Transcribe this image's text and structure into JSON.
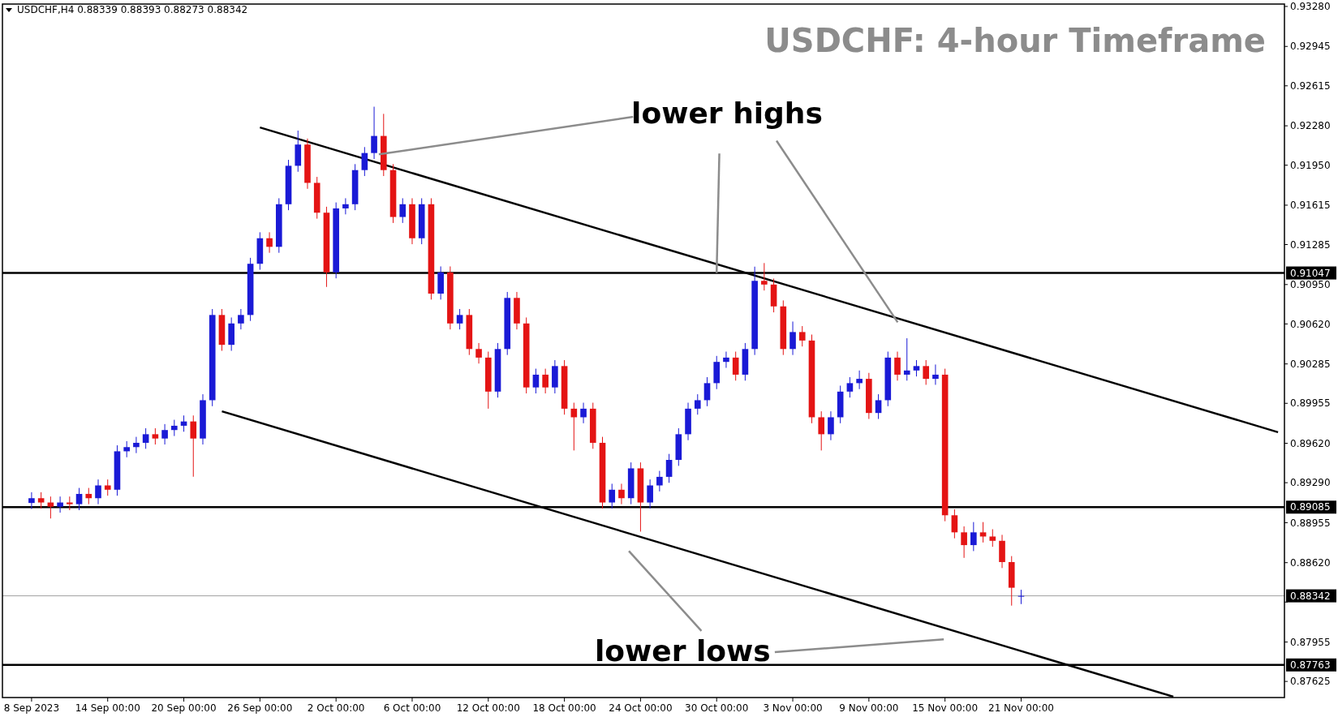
{
  "chart_data": {
    "type": "candlestick",
    "title": "USDCHF: 4-hour Timeframe",
    "annotations": [
      "USDCHF,H4  0.88339 0.88393 0.88273 0.88342",
      {
        "text": "lower highs",
        "x": "30 Oct 00:00",
        "y": 0.91047
      },
      {
        "text": "lower lows",
        "y": 0.88717
      }
    ],
    "categories": [
      "8 Sep 2023",
      null,
      null,
      null,
      null,
      null,
      null,
      null,
      "14 Sep 00:00",
      null,
      null,
      null,
      null,
      null,
      null,
      null,
      "20 Sep 00:00",
      null,
      null,
      null,
      null,
      null,
      null,
      null,
      "26 Sep 00:00",
      null,
      null,
      null,
      null,
      null,
      null,
      null,
      "2 Oct 00:00",
      null,
      null,
      null,
      null,
      null,
      null,
      null,
      "6 Oct 00:00",
      null,
      null,
      null,
      null,
      null,
      null,
      null,
      "12 Oct 00:00",
      null,
      null,
      null,
      null,
      null,
      null,
      null,
      "18 Oct 00:00",
      null,
      null,
      null,
      null,
      null,
      null,
      null,
      "24 Oct 00:00",
      null,
      null,
      null,
      null,
      null,
      null,
      null,
      "30 Oct 00:00",
      null,
      null,
      null,
      null,
      null,
      null,
      null,
      "3 Nov 00:00",
      null,
      null,
      null,
      null,
      null,
      null,
      null,
      "9 Nov 00:00",
      null,
      null,
      null,
      null,
      null,
      null,
      null,
      "15 Nov 00:00",
      null,
      null,
      null,
      null,
      null,
      null,
      null,
      "21 Nov 00:00",
      null,
      null,
      null,
      null,
      null,
      null,
      null,
      null,
      null,
      null,
      null,
      null,
      null,
      null,
      null,
      null,
      null,
      null,
      null,
      null,
      null,
      null,
      null,
      null,
      null,
      null,
      null
    ],
    "colors": [
      "#1a1ad6",
      "#e41414",
      "#e41414",
      "#1a1ad6",
      "#e41414",
      "#1a1ad6",
      "#e41414",
      "#1a1ad6",
      "#e41414",
      "#1a1ad6",
      "#1a1ad6",
      "#1a1ad6",
      "#1a1ad6",
      "#e41414",
      "#1a1ad6",
      "#1a1ad6",
      "#1a1ad6",
      "#e41414",
      "#1a1ad6",
      "#1a1ad6",
      "#e41414",
      "#1a1ad6",
      "#1a1ad6",
      "#1a1ad6",
      "#1a1ad6",
      "#e41414",
      "#1a1ad6",
      "#1a1ad6",
      "#1a1ad6",
      "#e41414",
      "#e41414",
      "#e41414",
      "#1a1ad6",
      "#1a1ad6",
      "#1a1ad6",
      "#1a1ad6",
      "#1a1ad6",
      "#e41414",
      "#e41414",
      "#1a1ad6",
      "#e41414",
      "#1a1ad6",
      "#e41414",
      "#1a1ad6",
      "#e41414",
      "#1a1ad6",
      "#e41414",
      "#e41414",
      "#e41414",
      "#1a1ad6",
      "#1a1ad6",
      "#e41414",
      "#e41414",
      "#1a1ad6",
      "#e41414",
      "#1a1ad6",
      "#e41414",
      "#e41414",
      "#1a1ad6",
      "#e41414",
      "#e41414",
      "#1a1ad6",
      "#e41414",
      "#1a1ad6",
      "#e41414",
      "#1a1ad6",
      "#1a1ad6",
      "#1a1ad6",
      "#1a1ad6",
      "#1a1ad6",
      "#1a1ad6",
      "#1a1ad6",
      "#1a1ad6",
      "#1a1ad6",
      "#e41414",
      "#1a1ad6",
      "#1a1ad6",
      "#e41414",
      "#e41414",
      "#e41414",
      "#1a1ad6",
      "#e41414",
      "#e41414",
      "#e41414",
      "#1a1ad6",
      "#1a1ad6",
      "#1a1ad6",
      "#1a1ad6",
      "#e41414",
      "#1a1ad6",
      "#1a1ad6",
      "#e41414",
      "#1a1ad6",
      "#1a1ad6",
      "#e41414",
      "#1a1ad6",
      "#e41414",
      "#e41414",
      "#e41414",
      "#1a1ad6",
      "#e41414",
      "#e41414",
      "#e41414",
      "#e41414",
      "#1a1ad6",
      null,
      null,
      null,
      null,
      null,
      null,
      null,
      null,
      null,
      null,
      null,
      null,
      null,
      null,
      null,
      null,
      null,
      null,
      null,
      null,
      null,
      null,
      null,
      null,
      null,
      null,
      null
    ],
    "ohlc": [
      [
        0.8912,
        0.8921,
        0.8907,
        0.8916
      ],
      [
        0.8916,
        0.8921,
        0.89074,
        0.89124
      ],
      [
        0.89124,
        0.89174,
        0.8899,
        0.89089
      ],
      [
        0.89089,
        0.89174,
        0.89039,
        0.89124
      ],
      [
        0.89124,
        0.89174,
        0.8906,
        0.8911
      ],
      [
        0.8911,
        0.89246,
        0.8906,
        0.89196
      ],
      [
        0.89196,
        0.89246,
        0.8911,
        0.8916
      ],
      [
        0.8916,
        0.89317,
        0.8911,
        0.89267
      ],
      [
        0.89267,
        0.89317,
        0.89181,
        0.89231
      ],
      [
        0.89231,
        0.89603,
        0.89181,
        0.89553
      ],
      [
        0.89553,
        0.89638,
        0.89503,
        0.89588
      ],
      [
        0.89588,
        0.89674,
        0.89538,
        0.89624
      ],
      [
        0.89624,
        0.89746,
        0.89574,
        0.89696
      ],
      [
        0.89696,
        0.89746,
        0.8961,
        0.8966
      ],
      [
        0.8966,
        0.89781,
        0.8961,
        0.89731
      ],
      [
        0.89731,
        0.89817,
        0.89681,
        0.89767
      ],
      [
        0.89767,
        0.89853,
        0.89717,
        0.89803
      ],
      [
        0.89803,
        0.89853,
        0.8934,
        0.8966
      ],
      [
        0.8966,
        0.90031,
        0.8961,
        0.89981
      ],
      [
        0.89981,
        0.90745,
        0.89931,
        0.90695
      ],
      [
        0.90695,
        0.90745,
        0.90395,
        0.90445
      ],
      [
        0.90445,
        0.90674,
        0.90395,
        0.90624
      ],
      [
        0.90624,
        0.90745,
        0.90574,
        0.90695
      ],
      [
        0.90695,
        0.91174,
        0.90645,
        0.91124
      ],
      [
        0.91124,
        0.91388,
        0.91074,
        0.91338
      ],
      [
        0.91338,
        0.91388,
        0.91216,
        0.91266
      ],
      [
        0.91266,
        0.91673,
        0.91216,
        0.91623
      ],
      [
        0.91623,
        0.91995,
        0.91573,
        0.91945
      ],
      [
        0.91945,
        0.9224,
        0.91895,
        0.92123
      ],
      [
        0.92123,
        0.92173,
        0.91752,
        0.91802
      ],
      [
        0.91802,
        0.91852,
        0.91502,
        0.91552
      ],
      [
        0.91552,
        0.91602,
        0.9093,
        0.91052
      ],
      [
        0.91052,
        0.91638,
        0.91002,
        0.91588
      ],
      [
        0.91588,
        0.91673,
        0.91538,
        0.91623
      ],
      [
        0.91623,
        0.91959,
        0.91573,
        0.91909
      ],
      [
        0.91909,
        0.92102,
        0.91859,
        0.92052
      ],
      [
        0.92052,
        0.9244,
        0.92002,
        0.92195
      ],
      [
        0.92195,
        0.9238,
        0.91859,
        0.91909
      ],
      [
        0.91909,
        0.91959,
        0.91466,
        0.91516
      ],
      [
        0.91516,
        0.91673,
        0.91466,
        0.91623
      ],
      [
        0.91623,
        0.91673,
        0.91288,
        0.91338
      ],
      [
        0.91338,
        0.91673,
        0.91288,
        0.91623
      ],
      [
        0.91623,
        0.91673,
        0.90824,
        0.90874
      ],
      [
        0.90874,
        0.91102,
        0.90824,
        0.91052
      ],
      [
        0.91052,
        0.91102,
        0.90574,
        0.90624
      ],
      [
        0.90624,
        0.90745,
        0.90574,
        0.90695
      ],
      [
        0.90695,
        0.90745,
        0.9036,
        0.9041
      ],
      [
        0.9041,
        0.9046,
        0.90288,
        0.90338
      ],
      [
        0.90338,
        0.90388,
        0.8991,
        0.90053
      ],
      [
        0.90053,
        0.9046,
        0.90003,
        0.9041
      ],
      [
        0.9041,
        0.90888,
        0.9036,
        0.90838
      ],
      [
        0.90838,
        0.90888,
        0.90574,
        0.90624
      ],
      [
        0.90624,
        0.90674,
        0.90038,
        0.90088
      ],
      [
        0.90088,
        0.90245,
        0.90038,
        0.90195
      ],
      [
        0.90195,
        0.90245,
        0.90038,
        0.90088
      ],
      [
        0.90088,
        0.90317,
        0.90038,
        0.90267
      ],
      [
        0.90267,
        0.90317,
        0.8986,
        0.8991
      ],
      [
        0.8991,
        0.8996,
        0.8956,
        0.89838
      ],
      [
        0.89838,
        0.8996,
        0.89788,
        0.8991
      ],
      [
        0.8991,
        0.8996,
        0.89574,
        0.89624
      ],
      [
        0.89624,
        0.89674,
        0.89074,
        0.89124
      ],
      [
        0.89124,
        0.89281,
        0.89074,
        0.89231
      ],
      [
        0.89231,
        0.89281,
        0.8911,
        0.8916
      ],
      [
        0.8916,
        0.8946,
        0.8911,
        0.8941
      ],
      [
        0.8941,
        0.8946,
        0.8888,
        0.89124
      ],
      [
        0.89124,
        0.89317,
        0.89074,
        0.89267
      ],
      [
        0.89267,
        0.89389,
        0.89217,
        0.89339
      ],
      [
        0.89339,
        0.89531,
        0.89289,
        0.89481
      ],
      [
        0.89481,
        0.89746,
        0.89431,
        0.89696
      ],
      [
        0.89696,
        0.8996,
        0.89646,
        0.8991
      ],
      [
        0.8991,
        0.90031,
        0.8986,
        0.89981
      ],
      [
        0.89981,
        0.90174,
        0.89931,
        0.90124
      ],
      [
        0.90124,
        0.90352,
        0.90074,
        0.90302
      ],
      [
        0.90302,
        0.90388,
        0.90252,
        0.90338
      ],
      [
        0.90338,
        0.90388,
        0.90145,
        0.90195
      ],
      [
        0.90195,
        0.9046,
        0.90145,
        0.9041
      ],
      [
        0.9041,
        0.911,
        0.9036,
        0.90981
      ],
      [
        0.90981,
        0.9113,
        0.909,
        0.9095
      ],
      [
        0.9095,
        0.91,
        0.90717,
        0.90767
      ],
      [
        0.90767,
        0.90817,
        0.9036,
        0.9041
      ],
      [
        0.9041,
        0.9064,
        0.9036,
        0.90552
      ],
      [
        0.90552,
        0.90602,
        0.90431,
        0.90481
      ],
      [
        0.90481,
        0.90531,
        0.89788,
        0.89838
      ],
      [
        0.89838,
        0.89888,
        0.8956,
        0.89696
      ],
      [
        0.89696,
        0.89888,
        0.89646,
        0.89838
      ],
      [
        0.89838,
        0.90103,
        0.89788,
        0.90053
      ],
      [
        0.90053,
        0.90174,
        0.90003,
        0.90124
      ],
      [
        0.90124,
        0.9023,
        0.90074,
        0.9016
      ],
      [
        0.9016,
        0.9021,
        0.89824,
        0.89874
      ],
      [
        0.89874,
        0.90031,
        0.89824,
        0.89981
      ],
      [
        0.89981,
        0.90388,
        0.89931,
        0.90338
      ],
      [
        0.90338,
        0.90388,
        0.90145,
        0.90195
      ],
      [
        0.90195,
        0.905,
        0.90145,
        0.9023
      ],
      [
        0.9023,
        0.90317,
        0.9018,
        0.90267
      ],
      [
        0.90267,
        0.90317,
        0.9011,
        0.9016
      ],
      [
        0.9016,
        0.9028,
        0.9011,
        0.90195
      ],
      [
        0.90195,
        0.90245,
        0.88967,
        0.89017
      ],
      [
        0.89017,
        0.89067,
        0.88824,
        0.88874
      ],
      [
        0.88874,
        0.88924,
        0.8866,
        0.88767
      ],
      [
        0.88767,
        0.8896,
        0.88717,
        0.88874
      ],
      [
        0.88874,
        0.8896,
        0.88789,
        0.88839
      ],
      [
        0.88839,
        0.889,
        0.88753,
        0.88803
      ],
      [
        0.88803,
        0.88853,
        0.88575,
        0.88625
      ],
      [
        0.88625,
        0.88675,
        0.8826,
        0.8841
      ],
      [
        0.88339,
        0.88393,
        0.88273,
        0.88342
      ],
      null,
      null,
      null,
      null,
      null,
      null,
      null,
      null,
      null,
      null,
      null,
      null,
      null,
      null,
      null,
      null,
      null,
      null,
      null,
      null,
      null,
      null,
      null,
      null,
      null,
      null,
      null
    ],
    "series": [
      {
        "type": "line",
        "color": "#000000",
        "values": [
          null,
          null,
          null,
          null,
          null,
          null,
          null,
          null,
          null,
          null,
          null,
          null,
          null,
          null,
          null,
          null,
          null,
          null,
          null,
          null,
          null,
          null,
          null,
          null,
          0.92266,
          null,
          null,
          null,
          null,
          null,
          null,
          null,
          null,
          null,
          null,
          null,
          null,
          null,
          null,
          null,
          null,
          null,
          null,
          null,
          null,
          null,
          null,
          null,
          null,
          null,
          null,
          null,
          null,
          null,
          null,
          null,
          null,
          null,
          null,
          null,
          null,
          null,
          null,
          null,
          null,
          null,
          null,
          null,
          null,
          null,
          null,
          null,
          null,
          null,
          null,
          null,
          null,
          null,
          null,
          null,
          null,
          null,
          null,
          null,
          null,
          null,
          null,
          null,
          null,
          null,
          null,
          null,
          null,
          null,
          null,
          null,
          null,
          null,
          null,
          null,
          null,
          null,
          null,
          null,
          null,
          null,
          null,
          null,
          null,
          null,
          null,
          null,
          null,
          null,
          null,
          null,
          null,
          null,
          null,
          null,
          null,
          null,
          null,
          null,
          null,
          null,
          null,
          null,
          null,
          null,
          null,
          0.89713
        ]
      },
      {
        "type": "line",
        "color": "#000000",
        "values": [
          null,
          null,
          null,
          null,
          null,
          null,
          null,
          null,
          null,
          null,
          null,
          null,
          null,
          null,
          null,
          null,
          null,
          null,
          null,
          null,
          0.89888,
          null,
          null,
          null,
          null,
          null,
          null,
          null,
          null,
          null,
          null,
          null,
          null,
          null,
          null,
          null,
          null,
          null,
          null,
          null,
          null,
          null,
          null,
          null,
          null,
          null,
          null,
          null,
          null,
          null,
          null,
          null,
          null,
          null,
          null,
          null,
          null,
          null,
          null,
          null,
          null,
          null,
          null,
          null,
          null,
          null,
          null,
          null,
          null,
          null,
          null,
          null,
          null,
          null,
          null,
          null,
          null,
          null,
          null,
          null,
          null,
          null,
          null,
          null,
          null,
          null,
          null,
          null,
          null,
          null,
          null,
          null,
          null,
          null,
          null,
          null,
          null,
          null,
          null,
          null,
          null,
          null,
          null,
          null,
          null,
          null,
          null,
          null,
          null,
          null,
          null,
          null,
          null,
          null,
          null,
          null,
          null,
          null,
          null,
          null,
          0.87497,
          null,
          null,
          null,
          null,
          null,
          null,
          null,
          null,
          null,
          null,
          null
        ]
      }
    ],
    "ref_lines": [
      {
        "axis": "y",
        "value": 0.91047,
        "label": "0.91047",
        "color": "#000000"
      },
      {
        "axis": "y",
        "value": 0.89085,
        "label": "0.89085",
        "color": "#000000"
      },
      {
        "axis": "y",
        "value": 0.87763,
        "label": "0.87763",
        "color": "#000000"
      },
      {
        "axis": "y",
        "value": 0.88342,
        "label": "0.88342",
        "color": "#a0a0a0"
      }
    ],
    "ylim": [
      0.8749,
      0.933
    ],
    "yticks": [
      {
        "value": 0.9328,
        "label": "0.93280"
      },
      {
        "value": 0.92945,
        "label": "0.92945"
      },
      {
        "value": 0.92615,
        "label": "0.92615"
      },
      {
        "value": 0.9228,
        "label": "0.92280"
      },
      {
        "value": 0.9195,
        "label": "0.91950"
      },
      {
        "value": 0.91615,
        "label": "0.91615"
      },
      {
        "value": 0.91285,
        "label": "0.91285"
      },
      {
        "value": 0.9095,
        "label": "0.90950"
      },
      {
        "value": 0.9062,
        "label": "0.90620"
      },
      {
        "value": 0.90285,
        "label": "0.90285"
      },
      {
        "value": 0.89955,
        "label": "0.89955"
      },
      {
        "value": 0.8962,
        "label": "0.89620"
      },
      {
        "value": 0.8929,
        "label": "0.89290"
      },
      {
        "value": 0.88955,
        "label": "0.88955"
      },
      {
        "value": 0.8862,
        "label": "0.88620"
      },
      {
        "value": 0.8829,
        "label": null
      },
      {
        "value": 0.87955,
        "label": "0.87955"
      },
      {
        "value": 0.87625,
        "label": "0.87625"
      }
    ],
    "grid": false
  }
}
